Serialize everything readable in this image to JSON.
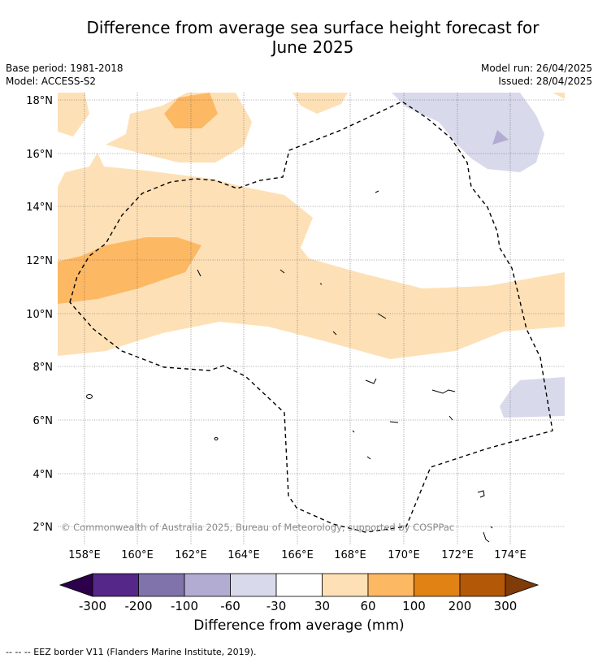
{
  "title_line1": "Difference from average sea surface height forecast for",
  "title_line2": "June 2025",
  "meta": {
    "base_period": "Base period: 1981-2018",
    "model": "Model: ACCESS-S2",
    "model_run": "Model run: 26/04/2025",
    "issued": "Issued: 28/04/2025"
  },
  "map": {
    "lat_labels": [
      "2°N",
      "4°N",
      "6°N",
      "8°N",
      "10°N",
      "12°N",
      "14°N",
      "16°N",
      "18°N"
    ],
    "lon_labels": [
      "158°E",
      "160°E",
      "162°E",
      "164°E",
      "166°E",
      "168°E",
      "170°E",
      "172°E",
      "174°E"
    ],
    "copyright": "© Commonwealth of Australia 2025, Bureau of Meteorology, supported by COSPPac"
  },
  "colorbar": {
    "title": "Difference from average (mm)",
    "tick_labels": [
      "-300",
      "-200",
      "-100",
      "-60",
      "-30",
      "30",
      "60",
      "100",
      "200",
      "300"
    ],
    "colors": [
      "#2d004b",
      "#542788",
      "#8073ac",
      "#b2abd2",
      "#d8daeb",
      "#ffffff",
      "#fee0b6",
      "#fdb863",
      "#e08214",
      "#b35806",
      "#7f3b08"
    ]
  },
  "footnote": "-- -- -- EEZ border V11 (Flanders Marine Institute, 2019)."
}
